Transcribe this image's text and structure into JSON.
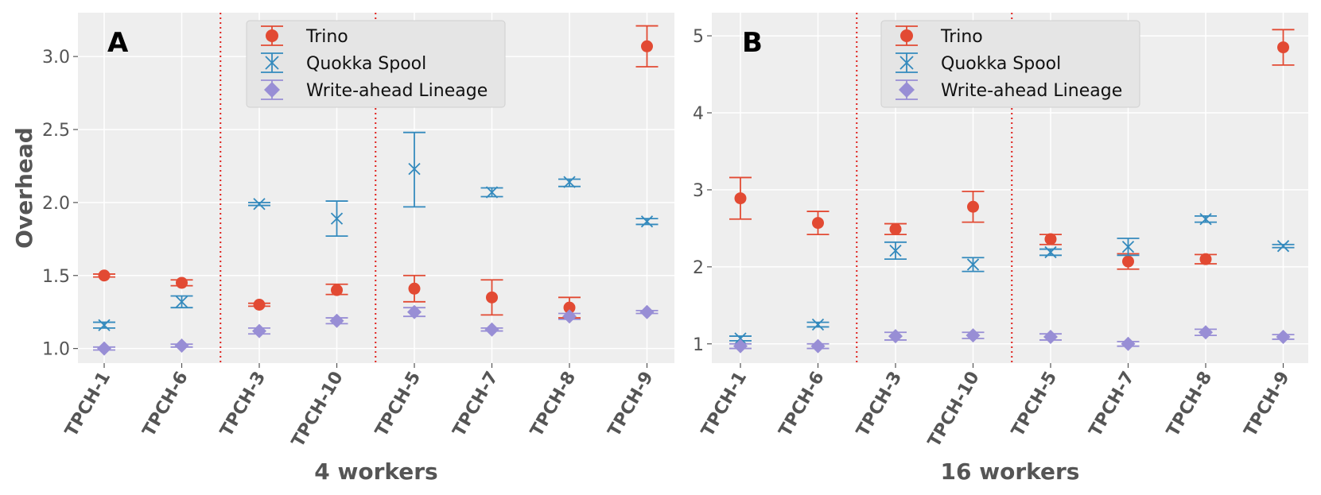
{
  "chart_data": [
    {
      "type": "scatter",
      "panel_label": "A",
      "xlabel": "4 workers",
      "ylabel": "Overhead",
      "categories": [
        "TPCH-1",
        "TPCH-6",
        "TPCH-3",
        "TPCH-10",
        "TPCH-5",
        "TPCH-7",
        "TPCH-8",
        "TPCH-9"
      ],
      "ylim": [
        0.9,
        3.3
      ],
      "yticks": [
        1.0,
        1.5,
        2.0,
        2.5,
        3.0
      ],
      "ytick_labels": [
        "1.0",
        "1.5",
        "2.0",
        "2.5",
        "3.0"
      ],
      "separators_after_index": [
        1,
        3
      ],
      "legend_position": "top-center",
      "series": [
        {
          "name": "Trino",
          "marker": "circle",
          "color": "#e24a33",
          "values": [
            1.5,
            1.45,
            1.3,
            1.4,
            1.41,
            1.35,
            1.28,
            3.07
          ],
          "err_low": [
            1.49,
            1.43,
            1.29,
            1.37,
            1.32,
            1.23,
            1.21,
            2.93
          ],
          "err_high": [
            1.51,
            1.47,
            1.31,
            1.44,
            1.5,
            1.47,
            1.35,
            3.21
          ]
        },
        {
          "name": "Quokka Spool",
          "marker": "x",
          "color": "#348abd",
          "values": [
            1.16,
            1.32,
            1.99,
            1.89,
            2.23,
            2.07,
            2.14,
            1.87
          ],
          "err_low": [
            1.14,
            1.28,
            1.98,
            1.77,
            1.97,
            2.04,
            2.11,
            1.85
          ],
          "err_high": [
            1.18,
            1.36,
            2.0,
            2.01,
            2.48,
            2.1,
            2.16,
            1.89
          ]
        },
        {
          "name": "Write-ahead Lineage",
          "marker": "diamond",
          "color": "#988ed5",
          "values": [
            1.0,
            1.02,
            1.12,
            1.19,
            1.25,
            1.13,
            1.22,
            1.25
          ],
          "err_low": [
            0.99,
            1.01,
            1.1,
            1.17,
            1.22,
            1.12,
            1.2,
            1.24
          ],
          "err_high": [
            1.01,
            1.03,
            1.14,
            1.21,
            1.28,
            1.14,
            1.24,
            1.26
          ]
        }
      ]
    },
    {
      "type": "scatter",
      "panel_label": "B",
      "xlabel": "16 workers",
      "ylabel": "",
      "categories": [
        "TPCH-1",
        "TPCH-6",
        "TPCH-3",
        "TPCH-10",
        "TPCH-5",
        "TPCH-7",
        "TPCH-8",
        "TPCH-9"
      ],
      "ylim": [
        0.75,
        5.3
      ],
      "yticks": [
        1,
        2,
        3,
        4,
        5
      ],
      "ytick_labels": [
        "1",
        "2",
        "3",
        "4",
        "5"
      ],
      "separators_after_index": [
        1,
        3
      ],
      "legend_position": "top-center",
      "series": [
        {
          "name": "Trino",
          "marker": "circle",
          "color": "#e24a33",
          "values": [
            2.89,
            2.57,
            2.49,
            2.78,
            2.36,
            2.07,
            2.1,
            4.85
          ],
          "err_low": [
            2.62,
            2.42,
            2.42,
            2.58,
            2.29,
            1.97,
            2.04,
            4.62
          ],
          "err_high": [
            3.16,
            2.72,
            2.56,
            2.98,
            2.42,
            2.17,
            2.16,
            5.08
          ]
        },
        {
          "name": "Quokka Spool",
          "marker": "x",
          "color": "#348abd",
          "values": [
            1.07,
            1.25,
            2.21,
            2.03,
            2.19,
            2.26,
            2.62,
            2.27
          ],
          "err_low": [
            1.04,
            1.22,
            2.1,
            1.94,
            2.15,
            2.15,
            2.58,
            2.25
          ],
          "err_high": [
            1.1,
            1.28,
            2.32,
            2.12,
            2.23,
            2.37,
            2.66,
            2.29
          ]
        },
        {
          "name": "Write-ahead Lineage",
          "marker": "diamond",
          "color": "#988ed5",
          "values": [
            0.97,
            0.97,
            1.1,
            1.11,
            1.09,
            1.0,
            1.15,
            1.09
          ],
          "err_low": [
            0.94,
            0.94,
            1.05,
            1.07,
            1.05,
            0.97,
            1.11,
            1.06
          ],
          "err_high": [
            1.0,
            1.0,
            1.15,
            1.15,
            1.13,
            1.03,
            1.19,
            1.12
          ]
        }
      ]
    }
  ],
  "style": {
    "axes_background": "#eeeeee",
    "grid_color": "#ffffff",
    "separator_color": "#e0201c"
  }
}
